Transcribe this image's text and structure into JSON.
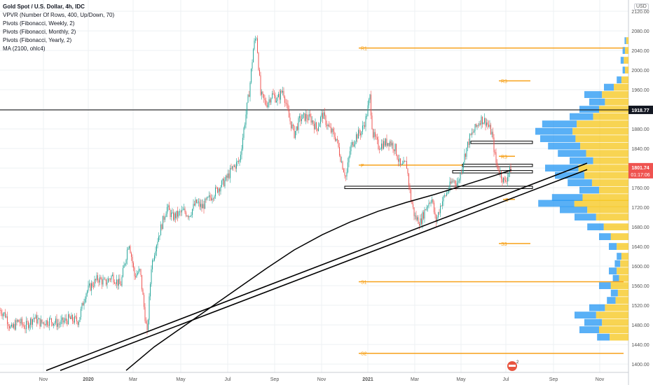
{
  "legend": {
    "title": "Gold Spot / U.S. Dollar, 4h, IDC",
    "indicators": [
      "VPVR (Number Of Rows, 400, Up/Down, 70)",
      "Pivots (Fibonacci, Weekly, 2)",
      "Pivots (Fibonacci, Monthly, 2)",
      "Pivots (Fibonacci, Yearly, 2)",
      "MA (2100, ohlc4)"
    ]
  },
  "currency": "USD",
  "colors": {
    "up": "#26a69a",
    "down": "#ef5350",
    "pivot": "#f7a21b",
    "vp_up": "#2196f3",
    "vp_down": "#f5c518",
    "line": "#000000",
    "grid": "#eef0f3"
  },
  "chart_data": {
    "type": "candlestick",
    "x_ticks": [
      "Nov",
      "2020",
      "Mar",
      "May",
      "Jul",
      "Sep",
      "Nov",
      "2021",
      "Mar",
      "May",
      "Jul",
      "Sep",
      "Nov"
    ],
    "y_ticks": [
      1400,
      1440,
      1480,
      1520,
      1560,
      1600,
      1640,
      1680,
      1720,
      1760,
      1800,
      1840,
      1880,
      1920,
      1960,
      2000,
      2040,
      2080,
      2120
    ],
    "ylim": [
      1383,
      2143
    ],
    "price_labels": [
      {
        "value": 1918.77,
        "text": "1918.77"
      },
      {
        "value": 1801.74,
        "text": "1801.74",
        "sub": "01:17:06"
      }
    ],
    "close_path": [
      [
        0,
        1510
      ],
      [
        8,
        1500
      ],
      [
        16,
        1470
      ],
      [
        26,
        1488
      ],
      [
        36,
        1476
      ],
      [
        48,
        1495
      ],
      [
        58,
        1484
      ],
      [
        72,
        1489
      ],
      [
        84,
        1482
      ],
      [
        98,
        1492
      ],
      [
        112,
        1488
      ],
      [
        122,
        1545
      ],
      [
        130,
        1560
      ],
      [
        140,
        1575
      ],
      [
        150,
        1565
      ],
      [
        160,
        1580
      ],
      [
        172,
        1560
      ],
      [
        184,
        1652
      ],
      [
        192,
        1580
      ],
      [
        200,
        1590
      ],
      [
        206,
        1510
      ],
      [
        210,
        1460
      ],
      [
        216,
        1600
      ],
      [
        222,
        1640
      ],
      [
        230,
        1680
      ],
      [
        238,
        1720
      ],
      [
        246,
        1700
      ],
      [
        254,
        1705
      ],
      [
        262,
        1712
      ],
      [
        270,
        1705
      ],
      [
        280,
        1730
      ],
      [
        288,
        1720
      ],
      [
        300,
        1740
      ],
      [
        312,
        1760
      ],
      [
        322,
        1775
      ],
      [
        332,
        1800
      ],
      [
        342,
        1815
      ],
      [
        348,
        1880
      ],
      [
        356,
        1960
      ],
      [
        362,
        2050
      ],
      [
        366,
        2070
      ],
      [
        372,
        1950
      ],
      [
        380,
        1930
      ],
      [
        388,
        1950
      ],
      [
        396,
        1940
      ],
      [
        404,
        1960
      ],
      [
        412,
        1905
      ],
      [
        420,
        1870
      ],
      [
        428,
        1900
      ],
      [
        436,
        1905
      ],
      [
        444,
        1900
      ],
      [
        452,
        1880
      ],
      [
        460,
        1910
      ],
      [
        470,
        1880
      ],
      [
        480,
        1860
      ],
      [
        488,
        1810
      ],
      [
        494,
        1780
      ],
      [
        500,
        1840
      ],
      [
        508,
        1865
      ],
      [
        516,
        1875
      ],
      [
        522,
        1900
      ],
      [
        528,
        1945
      ],
      [
        532,
        1870
      ],
      [
        540,
        1845
      ],
      [
        548,
        1850
      ],
      [
        556,
        1855
      ],
      [
        564,
        1840
      ],
      [
        572,
        1800
      ],
      [
        580,
        1810
      ],
      [
        586,
        1740
      ],
      [
        592,
        1700
      ],
      [
        600,
        1690
      ],
      [
        608,
        1720
      ],
      [
        616,
        1740
      ],
      [
        622,
        1690
      ],
      [
        630,
        1730
      ],
      [
        638,
        1750
      ],
      [
        646,
        1775
      ],
      [
        654,
        1770
      ],
      [
        662,
        1820
      ],
      [
        670,
        1860
      ],
      [
        678,
        1880
      ],
      [
        686,
        1900
      ],
      [
        694,
        1895
      ],
      [
        702,
        1870
      ],
      [
        708,
        1810
      ],
      [
        714,
        1790
      ],
      [
        720,
        1770
      ],
      [
        726,
        1790
      ],
      [
        730,
        1801.74
      ]
    ],
    "ma": [
      [
        180,
        1387
      ],
      [
        220,
        1435
      ],
      [
        260,
        1475
      ],
      [
        300,
        1515
      ],
      [
        340,
        1555
      ],
      [
        380,
        1595
      ],
      [
        420,
        1633
      ],
      [
        460,
        1664
      ],
      [
        500,
        1690
      ],
      [
        540,
        1712
      ],
      [
        580,
        1730
      ],
      [
        620,
        1746
      ],
      [
        660,
        1764
      ],
      [
        700,
        1782
      ],
      [
        730,
        1796
      ]
    ],
    "trendlines": [
      {
        "x1": 66,
        "y1": 1387,
        "x2": 838,
        "y2": 1810
      },
      {
        "x1": 86,
        "y1": 1387,
        "x2": 838,
        "y2": 1797
      }
    ],
    "zones": [
      {
        "x1": 492,
        "x2": 760,
        "low": 1758,
        "high": 1763
      },
      {
        "x1": 646,
        "x2": 760,
        "low": 1790,
        "high": 1795
      },
      {
        "x1": 660,
        "x2": 760,
        "low": 1803,
        "high": 1808
      },
      {
        "x1": 672,
        "x2": 760,
        "low": 1850,
        "high": 1855
      }
    ],
    "pivots": [
      {
        "label": "R1",
        "x1": 512,
        "x2": 890,
        "value": 2045
      },
      {
        "label": "R3",
        "x1": 712,
        "x2": 757,
        "value": 1978
      },
      {
        "label": "R3",
        "x1": 712,
        "x2": 735,
        "value": 1824
      },
      {
        "label": "P",
        "x1": 512,
        "x2": 735,
        "value": 1806
      },
      {
        "label": "S",
        "x1": 718,
        "x2": 735,
        "value": 1736
      },
      {
        "label": "S3",
        "x1": 712,
        "x2": 757,
        "value": 1646
      },
      {
        "label": "S1",
        "x1": 512,
        "x2": 890,
        "value": 1568
      },
      {
        "label": "S2",
        "x1": 512,
        "x2": 890,
        "value": 1422
      }
    ],
    "hline": 1918.77,
    "volume_profile": [
      [
        1455,
        0.32
      ],
      [
        1470,
        0.5
      ],
      [
        1485,
        0.45
      ],
      [
        1500,
        0.55
      ],
      [
        1515,
        0.4
      ],
      [
        1530,
        0.22
      ],
      [
        1545,
        0.18
      ],
      [
        1560,
        0.3
      ],
      [
        1575,
        0.16
      ],
      [
        1590,
        0.2
      ],
      [
        1605,
        0.14
      ],
      [
        1620,
        0.12
      ],
      [
        1640,
        0.2
      ],
      [
        1660,
        0.3
      ],
      [
        1680,
        0.42
      ],
      [
        1700,
        0.55
      ],
      [
        1715,
        0.7
      ],
      [
        1728,
        0.92
      ],
      [
        1740,
        0.78
      ],
      [
        1755,
        0.5
      ],
      [
        1770,
        0.62
      ],
      [
        1785,
        0.75
      ],
      [
        1800,
        0.85
      ],
      [
        1815,
        0.6
      ],
      [
        1830,
        0.72
      ],
      [
        1845,
        0.82
      ],
      [
        1860,
        0.9
      ],
      [
        1875,
        0.95
      ],
      [
        1890,
        0.88
      ],
      [
        1905,
        0.6
      ],
      [
        1920,
        0.5
      ],
      [
        1935,
        0.4
      ],
      [
        1950,
        0.45
      ],
      [
        1965,
        0.25
      ],
      [
        1980,
        0.12
      ],
      [
        2000,
        0.06
      ],
      [
        2020,
        0.08
      ],
      [
        2040,
        0.06
      ],
      [
        2060,
        0.04
      ]
    ]
  }
}
